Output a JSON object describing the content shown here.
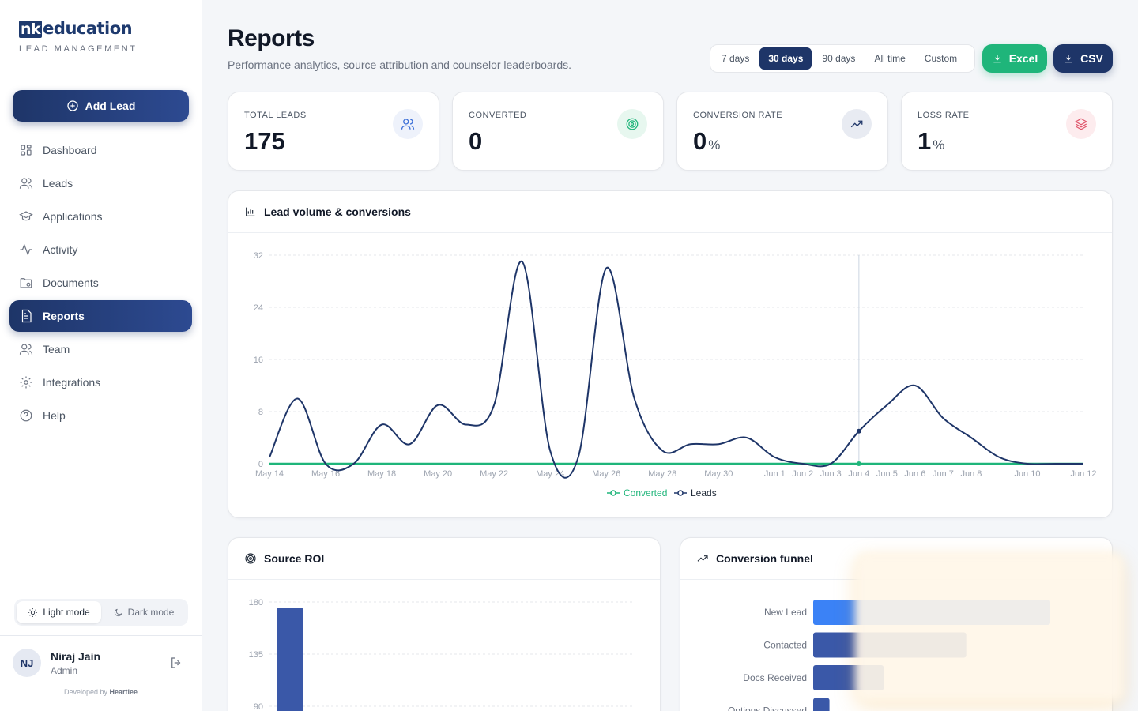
{
  "brand": {
    "logo_nk": "nk",
    "logo_text": "education",
    "subtitle": "LEAD MANAGEMENT"
  },
  "sidebar": {
    "add_lead": "Add Lead",
    "items": [
      {
        "label": "Dashboard",
        "icon": "grid-icon"
      },
      {
        "label": "Leads",
        "icon": "users-icon"
      },
      {
        "label": "Applications",
        "icon": "graduation-cap-icon"
      },
      {
        "label": "Activity",
        "icon": "activity-icon"
      },
      {
        "label": "Documents",
        "icon": "folder-icon"
      },
      {
        "label": "Reports",
        "icon": "report-icon",
        "active": true
      },
      {
        "label": "Team",
        "icon": "team-icon"
      },
      {
        "label": "Integrations",
        "icon": "gear-icon"
      },
      {
        "label": "Help",
        "icon": "help-icon"
      }
    ],
    "theme": {
      "light": "Light mode",
      "dark": "Dark mode",
      "selected": "Light mode"
    },
    "user": {
      "initials": "NJ",
      "name": "Niraj Jain",
      "role": "Admin"
    },
    "credit_prefix": "Developed by",
    "credit_name": "Heartiee"
  },
  "header": {
    "title": "Reports",
    "subtitle": "Performance analytics, source attribution and counselor leaderboards.",
    "ranges": [
      "7 days",
      "30 days",
      "90 days",
      "All time",
      "Custom"
    ],
    "selected_range": "30 days",
    "excel": "Excel",
    "csv": "CSV"
  },
  "stats": [
    {
      "label": "TOTAL LEADS",
      "value": "175",
      "unit": "",
      "icon": "users-icon",
      "color": "#3b6fd8",
      "bg": "#eef2fb"
    },
    {
      "label": "CONVERTED",
      "value": "0",
      "unit": "",
      "icon": "target-icon",
      "color": "#1fb57a",
      "bg": "#e7f7ef"
    },
    {
      "label": "CONVERSION RATE",
      "value": "0",
      "unit": "%",
      "icon": "trending-up-icon",
      "color": "#1e3568",
      "bg": "#e8ebf2"
    },
    {
      "label": "LOSS RATE",
      "value": "1",
      "unit": "%",
      "icon": "layers-icon",
      "color": "#e0566b",
      "bg": "#fdecee"
    }
  ],
  "volume_card": {
    "title": "Lead volume & conversions"
  },
  "chart_data": [
    {
      "type": "line",
      "title": "Lead volume & conversions",
      "x": [
        "May 14",
        "May 15",
        "May 16",
        "May 17",
        "May 18",
        "May 19",
        "May 20",
        "May 21",
        "May 22",
        "May 23",
        "May 24",
        "May 25",
        "May 26",
        "May 27",
        "May 28",
        "May 29",
        "May 30",
        "May 31",
        "Jun 1",
        "Jun 2",
        "Jun 3",
        "Jun 4",
        "Jun 5",
        "Jun 6",
        "Jun 7",
        "Jun 8",
        "Jun 9",
        "Jun 10",
        "Jun 11",
        "Jun 12"
      ],
      "x_tick_labels": [
        "May 14",
        "May 16",
        "May 18",
        "May 20",
        "May 22",
        "May 24",
        "May 26",
        "May 28",
        "May 30",
        "Jun 1",
        "Jun 2",
        "Jun 3",
        "Jun 4",
        "Jun 5",
        "Jun 6",
        "Jun 7",
        "Jun 8",
        "Jun 10",
        "Jun 12"
      ],
      "y_ticks": [
        0,
        8,
        16,
        24,
        32
      ],
      "ylim": [
        0,
        32
      ],
      "series": [
        {
          "name": "Converted",
          "color": "#1fb57a",
          "values": [
            0,
            0,
            0,
            0,
            0,
            0,
            0,
            0,
            0,
            0,
            0,
            0,
            0,
            0,
            0,
            0,
            0,
            0,
            0,
            0,
            0,
            0,
            0,
            0,
            0,
            0,
            0,
            0,
            0,
            0
          ]
        },
        {
          "name": "Leads",
          "color": "#1e3568",
          "values": [
            1,
            10,
            0,
            0,
            6,
            3,
            9,
            6,
            9,
            31,
            2,
            1,
            30,
            10,
            2,
            3,
            3,
            4,
            1,
            0,
            0,
            5,
            9,
            12,
            7,
            4,
            1,
            0,
            0,
            0
          ]
        }
      ],
      "legend": "bottom-center",
      "grid": true
    },
    {
      "type": "bar",
      "title": "Source ROI",
      "y_ticks": [
        90,
        135,
        180
      ],
      "ylim": [
        90,
        180
      ],
      "categories": [
        ""
      ],
      "values": [
        175
      ]
    },
    {
      "type": "bar",
      "title": "Conversion funnel",
      "orientation": "horizontal",
      "categories": [
        "New Lead",
        "Contacted",
        "Docs Received",
        "Options Discussed"
      ],
      "values": [
        175,
        113,
        52,
        12
      ]
    }
  ],
  "roi_card": {
    "title": "Source ROI"
  },
  "funnel_card": {
    "title": "Conversion funnel"
  }
}
